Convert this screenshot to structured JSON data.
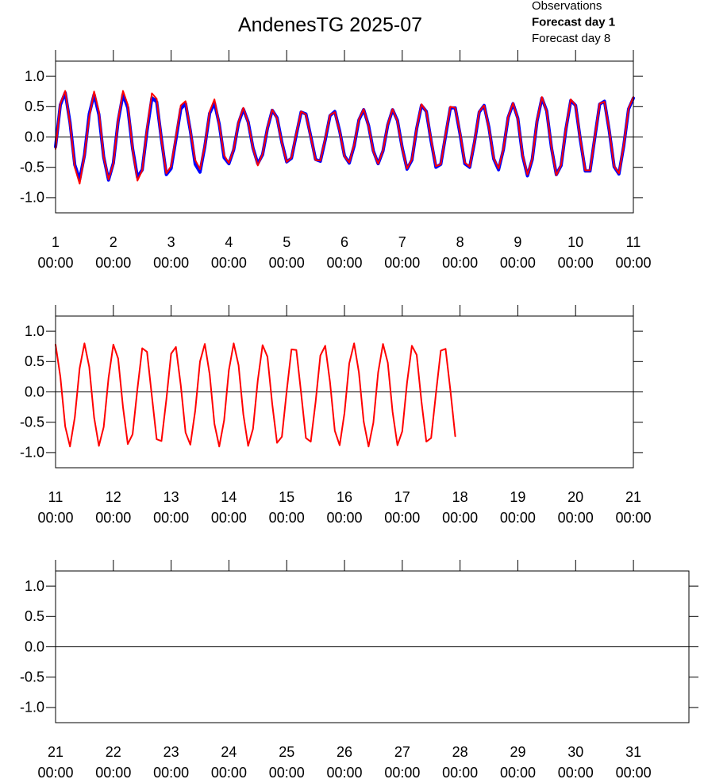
{
  "chart_data": [
    {
      "type": "line",
      "title": "AndenesTG 2025-07",
      "x": [
        1,
        1.083,
        1.167,
        1.25,
        1.333,
        1.417,
        1.5,
        1.583,
        1.667,
        1.75,
        1.833,
        1.917,
        2,
        2.083,
        2.167,
        2.25,
        2.333,
        2.417,
        2.5,
        2.583,
        2.667,
        2.75,
        2.833,
        2.917,
        3,
        3.083,
        3.167,
        3.25,
        3.333,
        3.417,
        3.5,
        3.583,
        3.667,
        3.75,
        3.833,
        3.917,
        4,
        4.083,
        4.167,
        4.25,
        4.333,
        4.417,
        4.5,
        4.583,
        4.667,
        4.75,
        4.833,
        4.917,
        5,
        5.083,
        5.167,
        5.25,
        5.333,
        5.417,
        5.5,
        5.583,
        5.667,
        5.75,
        5.833,
        5.917,
        6,
        6.083,
        6.167,
        6.25,
        6.333,
        6.417,
        6.5,
        6.583,
        6.667,
        6.75,
        6.833,
        6.917,
        7,
        7.083,
        7.167,
        7.25,
        7.333,
        7.417,
        7.5,
        7.583,
        7.667,
        7.75,
        7.833,
        7.917,
        8,
        8.083,
        8.167,
        8.25,
        8.333,
        8.417,
        8.5,
        8.583,
        8.667,
        8.75,
        8.833,
        8.917,
        9,
        9.083,
        9.167,
        9.25,
        9.333,
        9.417,
        9.5,
        9.583,
        9.667,
        9.75,
        9.833,
        9.917,
        10,
        10.083,
        10.167,
        10.25,
        10.333,
        10.417,
        10.5,
        10.583,
        10.667,
        10.75,
        10.833,
        10.917,
        11
      ],
      "series": [
        {
          "name": "Observations",
          "color": "#000000",
          "values": [
            -0.18,
            0.5,
            0.71,
            0.25,
            -0.44,
            -0.72,
            -0.32,
            0.37,
            0.72,
            0.39,
            -0.31,
            -0.71,
            -0.45,
            0.24,
            0.71,
            0.5,
            -0.17,
            -0.68,
            -0.56,
            0.09,
            0.66,
            0.6,
            -0.01,
            -0.62,
            -0.52,
            -0.05,
            0.46,
            0.54,
            0.11,
            -0.42,
            -0.56,
            -0.17,
            0.38,
            0.57,
            0.23,
            -0.33,
            -0.45,
            -0.22,
            0.22,
            0.45,
            0.26,
            -0.17,
            -0.45,
            -0.3,
            0.13,
            0.43,
            0.33,
            -0.08,
            -0.42,
            -0.36,
            0.03,
            0.4,
            0.39,
            0.02,
            -0.37,
            -0.41,
            -0.06,
            0.34,
            0.43,
            0.11,
            -0.31,
            -0.44,
            -0.16,
            0.27,
            0.45,
            0.2,
            -0.23,
            -0.45,
            -0.24,
            0.19,
            0.45,
            0.28,
            -0.18,
            -0.54,
            -0.39,
            0.13,
            0.52,
            0.43,
            -0.07,
            -0.5,
            -0.46,
            0.01,
            0.47,
            0.49,
            0.05,
            -0.44,
            -0.51,
            -0.1,
            0.4,
            0.53,
            0.17,
            -0.36,
            -0.54,
            -0.22,
            0.31,
            0.55,
            0.32,
            -0.31,
            -0.65,
            -0.38,
            0.25,
            0.64,
            0.44,
            -0.18,
            -0.62,
            -0.48,
            0.12,
            0.6,
            0.53,
            -0.05,
            -0.57,
            -0.57,
            -0.02,
            0.54,
            0.59,
            0.09,
            -0.49,
            -0.62,
            -0.16,
            0.45,
            0.64
          ]
        },
        {
          "name": "Forecast day 1",
          "color": "#0000ff",
          "values": [
            -0.16,
            0.53,
            0.73,
            0.24,
            -0.46,
            -0.7,
            -0.3,
            0.38,
            0.7,
            0.37,
            -0.33,
            -0.71,
            -0.43,
            0.26,
            0.7,
            0.48,
            -0.19,
            -0.66,
            -0.54,
            0.1,
            0.64,
            0.58,
            -0.04,
            -0.62,
            -0.52,
            -0.04,
            0.46,
            0.55,
            0.1,
            -0.45,
            -0.58,
            -0.16,
            0.39,
            0.56,
            0.21,
            -0.34,
            -0.44,
            -0.21,
            0.23,
            0.46,
            0.25,
            -0.18,
            -0.44,
            -0.29,
            0.14,
            0.44,
            0.32,
            -0.09,
            -0.41,
            -0.35,
            0.04,
            0.41,
            0.38,
            0.01,
            -0.37,
            -0.4,
            -0.05,
            0.35,
            0.42,
            0.1,
            -0.31,
            -0.43,
            -0.15,
            0.28,
            0.45,
            0.19,
            -0.23,
            -0.44,
            -0.23,
            0.2,
            0.45,
            0.27,
            -0.18,
            -0.53,
            -0.38,
            0.14,
            0.52,
            0.42,
            -0.07,
            -0.5,
            -0.45,
            0.02,
            0.48,
            0.48,
            0.05,
            -0.44,
            -0.5,
            -0.09,
            0.41,
            0.52,
            0.16,
            -0.36,
            -0.54,
            -0.21,
            0.32,
            0.55,
            0.31,
            -0.31,
            -0.64,
            -0.37,
            0.26,
            0.64,
            0.43,
            -0.18,
            -0.62,
            -0.47,
            0.13,
            0.6,
            0.52,
            -0.05,
            -0.56,
            -0.56,
            -0.01,
            0.54,
            0.59,
            0.1,
            -0.49,
            -0.61,
            -0.15,
            0.46,
            0.64
          ]
        },
        {
          "name": "Forecast day 8",
          "color": "#ff0000",
          "values": [
            -0.2,
            0.55,
            0.76,
            0.22,
            -0.5,
            -0.77,
            -0.3,
            0.33,
            0.75,
            0.42,
            -0.33,
            -0.7,
            -0.44,
            0.28,
            0.76,
            0.53,
            -0.2,
            -0.72,
            -0.55,
            0.14,
            0.72,
            0.63,
            -0.05,
            -0.6,
            -0.48,
            0.0,
            0.52,
            0.59,
            0.1,
            -0.38,
            -0.53,
            -0.15,
            0.42,
            0.62,
            0.2,
            -0.3,
            -0.43,
            -0.2,
            0.25,
            0.48,
            0.24,
            -0.18,
            -0.47,
            -0.28,
            0.15,
            0.45,
            0.31,
            -0.1,
            -0.41,
            -0.34,
            0.06,
            0.42,
            0.37,
            0.0,
            -0.38,
            -0.39,
            -0.03,
            0.36,
            0.41,
            0.09,
            -0.32,
            -0.42,
            -0.13,
            0.29,
            0.46,
            0.18,
            -0.24,
            -0.44,
            -0.22,
            0.21,
            0.46,
            0.26,
            -0.19,
            -0.52,
            -0.37,
            0.15,
            0.54,
            0.42,
            -0.05,
            -0.48,
            -0.45,
            0.04,
            0.5,
            0.48,
            0.07,
            -0.42,
            -0.49,
            -0.08,
            0.42,
            0.52,
            0.15,
            -0.35,
            -0.52,
            -0.2,
            0.33,
            0.56,
            0.3,
            -0.3,
            -0.62,
            -0.36,
            0.27,
            0.66,
            0.42,
            -0.17,
            -0.63,
            -0.46,
            0.14,
            0.62,
            0.52,
            -0.04,
            -0.55,
            -0.55,
            0.0,
            0.55,
            0.58,
            0.11,
            -0.48,
            -0.6,
            -0.14,
            0.47,
            0.66
          ]
        }
      ],
      "xlim": [
        1,
        11
      ],
      "xticks": [
        {
          "value": 1,
          "label": [
            "1",
            "00:00"
          ]
        },
        {
          "value": 2,
          "label": [
            "2",
            "00:00"
          ]
        },
        {
          "value": 3,
          "label": [
            "3",
            "00:00"
          ]
        },
        {
          "value": 4,
          "label": [
            "4",
            "00:00"
          ]
        },
        {
          "value": 5,
          "label": [
            "5",
            "00:00"
          ]
        },
        {
          "value": 6,
          "label": [
            "6",
            "00:00"
          ]
        },
        {
          "value": 7,
          "label": [
            "7",
            "00:00"
          ]
        },
        {
          "value": 8,
          "label": [
            "8",
            "00:00"
          ]
        },
        {
          "value": 9,
          "label": [
            "9",
            "00:00"
          ]
        },
        {
          "value": 10,
          "label": [
            "10",
            "00:00"
          ]
        },
        {
          "value": 11,
          "label": [
            "11",
            "00:00"
          ]
        }
      ],
      "ylim": [
        -1.25,
        1.25
      ],
      "yticks": [
        {
          "value": -1,
          "label": "-1.0"
        },
        {
          "value": -0.5,
          "label": "-0.5"
        },
        {
          "value": 0,
          "label": "0.0"
        },
        {
          "value": 0.5,
          "label": "0.5"
        },
        {
          "value": 1,
          "label": "1.0"
        }
      ]
    },
    {
      "type": "line",
      "x": [
        11,
        11.083,
        11.167,
        11.25,
        11.333,
        11.417,
        11.5,
        11.583,
        11.667,
        11.75,
        11.833,
        11.917,
        12,
        12.083,
        12.167,
        12.25,
        12.333,
        12.417,
        12.5,
        12.583,
        12.667,
        12.75,
        12.833,
        12.917,
        13,
        13.083,
        13.167,
        13.25,
        13.333,
        13.417,
        13.5,
        13.583,
        13.667,
        13.75,
        13.833,
        13.917,
        14,
        14.083,
        14.167,
        14.25,
        14.333,
        14.417,
        14.5,
        14.583,
        14.667,
        14.75,
        14.833,
        14.917,
        15,
        15.083,
        15.167,
        15.25,
        15.333,
        15.417,
        15.5,
        15.583,
        15.667,
        15.75,
        15.833,
        15.917,
        16,
        16.083,
        16.167,
        16.25,
        16.333,
        16.417,
        16.5,
        16.583,
        16.667,
        16.75,
        16.833,
        16.917,
        17,
        17.083,
        17.167,
        17.25,
        17.333,
        17.417,
        17.5,
        17.583,
        17.667,
        17.75,
        17.833,
        17.917
      ],
      "series": [
        {
          "color": "#ff0000",
          "values": [
            0.78,
            0.25,
            -0.57,
            -0.9,
            -0.42,
            0.39,
            0.8,
            0.41,
            -0.42,
            -0.89,
            -0.58,
            0.23,
            0.78,
            0.55,
            -0.25,
            -0.86,
            -0.7,
            0.05,
            0.72,
            0.66,
            -0.07,
            -0.78,
            -0.81,
            -0.13,
            0.63,
            0.74,
            0.11,
            -0.67,
            -0.87,
            -0.31,
            0.5,
            0.79,
            0.29,
            -0.53,
            -0.9,
            -0.47,
            0.36,
            0.8,
            0.44,
            -0.37,
            -0.89,
            -0.61,
            0.19,
            0.77,
            0.58,
            -0.2,
            -0.84,
            -0.74,
            0.01,
            0.7,
            0.69,
            -0.02,
            -0.76,
            -0.82,
            -0.17,
            0.6,
            0.76,
            0.16,
            -0.64,
            -0.88,
            -0.35,
            0.47,
            0.8,
            0.32,
            -0.49,
            -0.9,
            -0.51,
            0.32,
            0.79,
            0.48,
            -0.33,
            -0.88,
            -0.65,
            0.15,
            0.76,
            0.61,
            -0.16,
            -0.82,
            -0.76,
            -0.03,
            0.68,
            0.71,
            0.03,
            -0.73
          ]
        }
      ],
      "xlim": [
        11,
        21
      ],
      "xticks": [
        {
          "value": 11,
          "label": [
            "11",
            "00:00"
          ]
        },
        {
          "value": 12,
          "label": [
            "12",
            "00:00"
          ]
        },
        {
          "value": 13,
          "label": [
            "13",
            "00:00"
          ]
        },
        {
          "value": 14,
          "label": [
            "14",
            "00:00"
          ]
        },
        {
          "value": 15,
          "label": [
            "15",
            "00:00"
          ]
        },
        {
          "value": 16,
          "label": [
            "16",
            "00:00"
          ]
        },
        {
          "value": 17,
          "label": [
            "17",
            "00:00"
          ]
        },
        {
          "value": 18,
          "label": [
            "18",
            "00:00"
          ]
        },
        {
          "value": 19,
          "label": [
            "19",
            "00:00"
          ]
        },
        {
          "value": 20,
          "label": [
            "20",
            "00:00"
          ]
        },
        {
          "value": 21,
          "label": [
            "21",
            "00:00"
          ]
        }
      ],
      "ylim": [
        -1.25,
        1.25
      ],
      "yticks": [
        {
          "value": -1,
          "label": "-1.0"
        },
        {
          "value": -0.5,
          "label": "-0.5"
        },
        {
          "value": 0,
          "label": "0.0"
        },
        {
          "value": 0.5,
          "label": "0.5"
        },
        {
          "value": 1,
          "label": "1.0"
        }
      ]
    },
    {
      "type": "line",
      "series": [],
      "xlim": [
        21,
        31.96
      ],
      "xticks": [
        {
          "value": 21,
          "label": [
            "21",
            "00:00"
          ]
        },
        {
          "value": 22,
          "label": [
            "22",
            "00:00"
          ]
        },
        {
          "value": 23,
          "label": [
            "23",
            "00:00"
          ]
        },
        {
          "value": 24,
          "label": [
            "24",
            "00:00"
          ]
        },
        {
          "value": 25,
          "label": [
            "25",
            "00:00"
          ]
        },
        {
          "value": 26,
          "label": [
            "26",
            "00:00"
          ]
        },
        {
          "value": 27,
          "label": [
            "27",
            "00:00"
          ]
        },
        {
          "value": 28,
          "label": [
            "28",
            "00:00"
          ]
        },
        {
          "value": 29,
          "label": [
            "29",
            "00:00"
          ]
        },
        {
          "value": 30,
          "label": [
            "30",
            "00:00"
          ]
        },
        {
          "value": 31,
          "label": [
            "31",
            "00:00"
          ]
        }
      ],
      "ylim": [
        -1.25,
        1.25
      ],
      "yticks": [
        {
          "value": -1,
          "label": "-1.0"
        },
        {
          "value": -0.5,
          "label": "-0.5"
        },
        {
          "value": 0,
          "label": "0.0"
        },
        {
          "value": 0.5,
          "label": "0.5"
        },
        {
          "value": 1,
          "label": "1.0"
        }
      ]
    }
  ]
}
